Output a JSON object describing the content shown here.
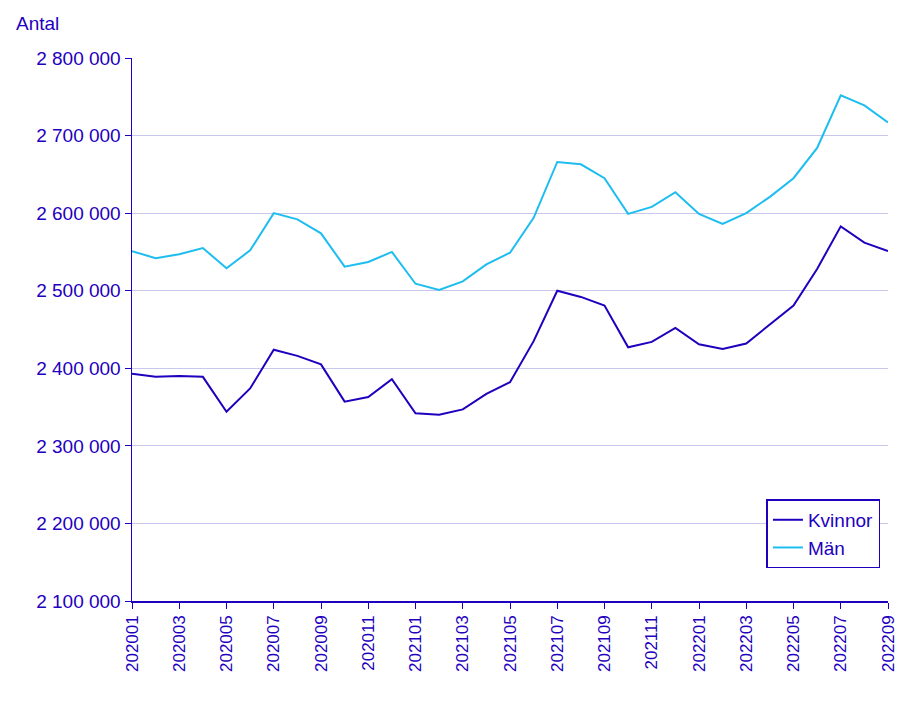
{
  "chart_data": {
    "type": "line",
    "y_label": "Antal",
    "categories": [
      "202001",
      null,
      "202003",
      null,
      "202005",
      null,
      "202007",
      null,
      "202009",
      null,
      "202011",
      null,
      "202101",
      null,
      "202103",
      null,
      "202105",
      null,
      "202107",
      null,
      "202109",
      null,
      "202111",
      null,
      "202201",
      null,
      "202203",
      null,
      "202205",
      null,
      "202207",
      null,
      "202209"
    ],
    "series": [
      {
        "name": "Kvinnor",
        "color": "#1e00be",
        "values": [
          2393000,
          2389000,
          2390000,
          2389000,
          2344000,
          2374000,
          2424000,
          2416000,
          2405000,
          2357000,
          2363000,
          2386000,
          2342000,
          2340000,
          2347000,
          2367000,
          2382000,
          2435000,
          2500000,
          2492000,
          2481000,
          2427000,
          2434000,
          2452000,
          2431000,
          2425000,
          2432000,
          2456000,
          2481000,
          2528000,
          2583000,
          2562000,
          2551000
        ]
      },
      {
        "name": "Män",
        "color": "#1ebdf0",
        "values": [
          2551000,
          2542000,
          2547000,
          2555000,
          2529000,
          2552000,
          2600000,
          2592000,
          2574000,
          2531000,
          2537000,
          2550000,
          2509000,
          2501000,
          2512000,
          2534000,
          2549000,
          2594000,
          2666000,
          2663000,
          2645000,
          2599000,
          2608000,
          2627000,
          2599000,
          2586000,
          2600000,
          2621000,
          2645000,
          2684000,
          2752000,
          2739000,
          2717000
        ]
      }
    ],
    "ylim": [
      2100000,
      2800000
    ],
    "yticks": [
      {
        "value": 2100000,
        "label": "2 100 000"
      },
      {
        "value": 2200000,
        "label": "2 200 000"
      },
      {
        "value": 2300000,
        "label": "2 300 000"
      },
      {
        "value": 2400000,
        "label": "2 400 000"
      },
      {
        "value": 2500000,
        "label": "2 500 000"
      },
      {
        "value": 2600000,
        "label": "2 600 000"
      },
      {
        "value": 2700000,
        "label": "2 700 000"
      },
      {
        "value": 2800000,
        "label": "2 800 000"
      }
    ],
    "grid": true,
    "legend": "lower right"
  }
}
